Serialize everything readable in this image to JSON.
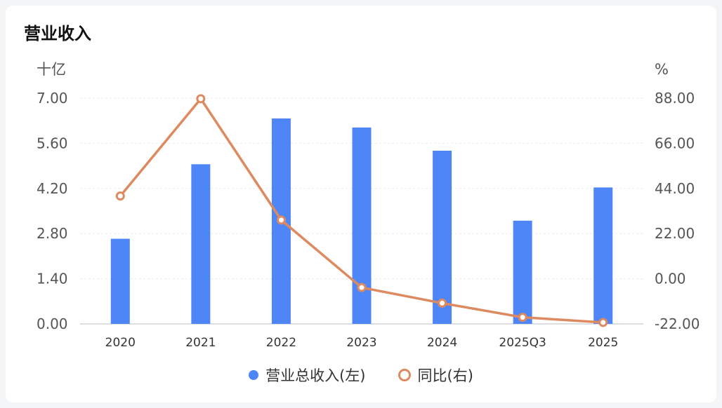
{
  "title": "营业收入",
  "chart_data": {
    "type": "bar+line",
    "categories": [
      "2020",
      "2021",
      "2022",
      "2023",
      "2024",
      "2025Q3",
      "2025"
    ],
    "series": [
      {
        "name": "营业总收入(左)",
        "type": "bar",
        "axis": "left",
        "color": "#4f86f7",
        "values": [
          2.64,
          4.95,
          6.37,
          6.09,
          5.37,
          3.2,
          4.23
        ]
      },
      {
        "name": "同比(右)",
        "type": "line",
        "axis": "right",
        "color": "#de8a60",
        "values": [
          40.3,
          87.7,
          28.6,
          -4.3,
          -11.9,
          -18.8,
          -21.3
        ]
      }
    ],
    "left_axis": {
      "unit": "十亿",
      "ylim": [
        0,
        7
      ],
      "ticks": [
        "0.00",
        "1.40",
        "2.80",
        "4.20",
        "5.60",
        "7.00"
      ]
    },
    "right_axis": {
      "unit": "%",
      "ylim": [
        -22,
        88
      ],
      "ticks": [
        "-22.00",
        "0.00",
        "22.00",
        "44.00",
        "66.00",
        "88.00"
      ]
    },
    "grid": true,
    "legend_position": "bottom-center"
  }
}
